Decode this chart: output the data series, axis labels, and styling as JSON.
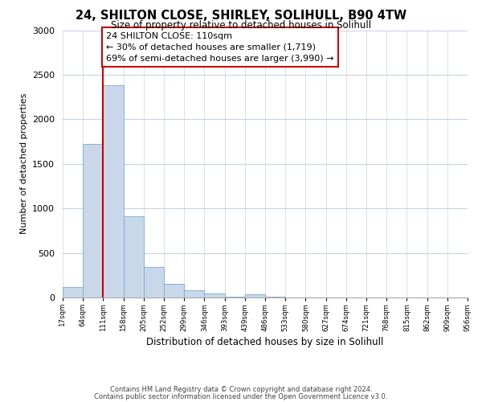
{
  "title": "24, SHILTON CLOSE, SHIRLEY, SOLIHULL, B90 4TW",
  "subtitle": "Size of property relative to detached houses in Solihull",
  "xlabel": "Distribution of detached houses by size in Solihull",
  "ylabel": "Number of detached properties",
  "bar_values": [
    120,
    1720,
    2380,
    910,
    345,
    155,
    80,
    45,
    5,
    35,
    5,
    0,
    0,
    0,
    0,
    0,
    0,
    0,
    0,
    0
  ],
  "bin_labels": [
    "17sqm",
    "64sqm",
    "111sqm",
    "158sqm",
    "205sqm",
    "252sqm",
    "299sqm",
    "346sqm",
    "393sqm",
    "439sqm",
    "486sqm",
    "533sqm",
    "580sqm",
    "627sqm",
    "674sqm",
    "721sqm",
    "768sqm",
    "815sqm",
    "862sqm",
    "909sqm",
    "956sqm"
  ],
  "bar_color": "#c8d8ea",
  "bar_edge_color": "#7aabcf",
  "red_line_color": "#cc0000",
  "annotation_line1": "24 SHILTON CLOSE: 110sqm",
  "annotation_line2": "← 30% of detached houses are smaller (1,719)",
  "annotation_line3": "69% of semi-detached houses are larger (3,990) →",
  "annotation_box_color": "#ffffff",
  "annotation_box_edge": "#cc0000",
  "ylim": [
    0,
    3000
  ],
  "yticks": [
    0,
    500,
    1000,
    1500,
    2000,
    2500,
    3000
  ],
  "footer_line1": "Contains HM Land Registry data © Crown copyright and database right 2024.",
  "footer_line2": "Contains public sector information licensed under the Open Government Licence v3.0.",
  "bg_color": "#ffffff",
  "grid_color": "#c8d4e0"
}
